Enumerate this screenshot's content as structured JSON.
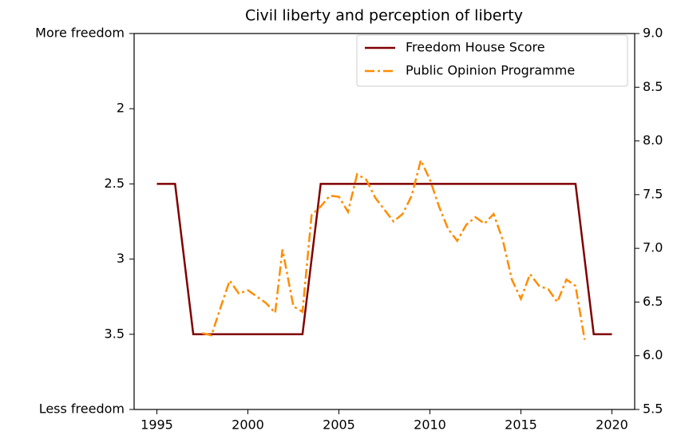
{
  "chart_data": {
    "type": "line",
    "title": "Civil liberty and perception of liberty",
    "xlim": [
      1993.75,
      2021.25
    ],
    "xticks": [
      1995,
      2000,
      2005,
      2010,
      2015,
      2020
    ],
    "ylim": [
      1.5,
      4
    ],
    "y_inverted": true,
    "yticks": [
      {
        "value": 1.5,
        "label": "More freedom"
      },
      2,
      2.5,
      3,
      3.5,
      {
        "value": 4,
        "label": "Less freedom"
      }
    ],
    "y2lim": [
      5.5,
      9
    ],
    "y2ticks": [
      5.5,
      {
        "value": 6,
        "label": "6.0"
      },
      6.5,
      {
        "value": 7,
        "label": "7.0"
      },
      7.5,
      {
        "value": 8,
        "label": "8.0"
      },
      8.5,
      {
        "value": 9,
        "label": "9.0"
      }
    ],
    "legend": "upper right",
    "series": [
      {
        "name": "Freedom House Score",
        "color": "#800000",
        "style": "solid",
        "x": [
          1995,
          1996,
          1997,
          1998,
          1999,
          2000,
          2001,
          2002,
          2003,
          2004,
          2005,
          2006,
          2007,
          2008,
          2009,
          2010,
          2011,
          2012,
          2013,
          2014,
          2015,
          2016,
          2017,
          2018,
          2019,
          2020
        ],
        "values": [
          2.5,
          2.5,
          3.5,
          3.5,
          3.5,
          3.5,
          3.5,
          3.5,
          3.5,
          2.5,
          2.5,
          2.5,
          2.5,
          2.5,
          2.5,
          2.5,
          2.5,
          2.5,
          2.5,
          2.5,
          2.5,
          2.5,
          2.5,
          2.5,
          3.5,
          3.5
        ]
      },
      {
        "name": "Public Opinion Programme",
        "color": "#ff8c00",
        "style": "dashdot",
        "axis": "y2",
        "x": [
          1997.5,
          1998,
          1998.5,
          1999,
          1999.5,
          2000,
          2000.5,
          2001,
          2001.5,
          2001.9,
          2002.5,
          2003,
          2003.5,
          2004,
          2004.5,
          2005,
          2005.5,
          2006,
          2006.5,
          2007,
          2007.5,
          2008,
          2008.5,
          2009,
          2009.5,
          2010,
          2010.5,
          2011,
          2011.5,
          2012,
          2012.5,
          2013,
          2013.5,
          2014,
          2014.5,
          2015,
          2015.5,
          2016,
          2016.5,
          2017,
          2017.5,
          2018,
          2018.5
        ],
        "values": [
          6.21,
          6.19,
          6.45,
          6.7,
          6.58,
          6.61,
          6.55,
          6.49,
          6.4,
          6.99,
          6.46,
          6.41,
          7.31,
          7.39,
          7.49,
          7.48,
          7.34,
          7.69,
          7.64,
          7.47,
          7.36,
          7.25,
          7.32,
          7.49,
          7.82,
          7.64,
          7.39,
          7.18,
          7.07,
          7.22,
          7.29,
          7.23,
          7.32,
          7.08,
          6.71,
          6.53,
          6.76,
          6.65,
          6.62,
          6.5,
          6.71,
          6.65,
          6.15
        ]
      }
    ]
  }
}
